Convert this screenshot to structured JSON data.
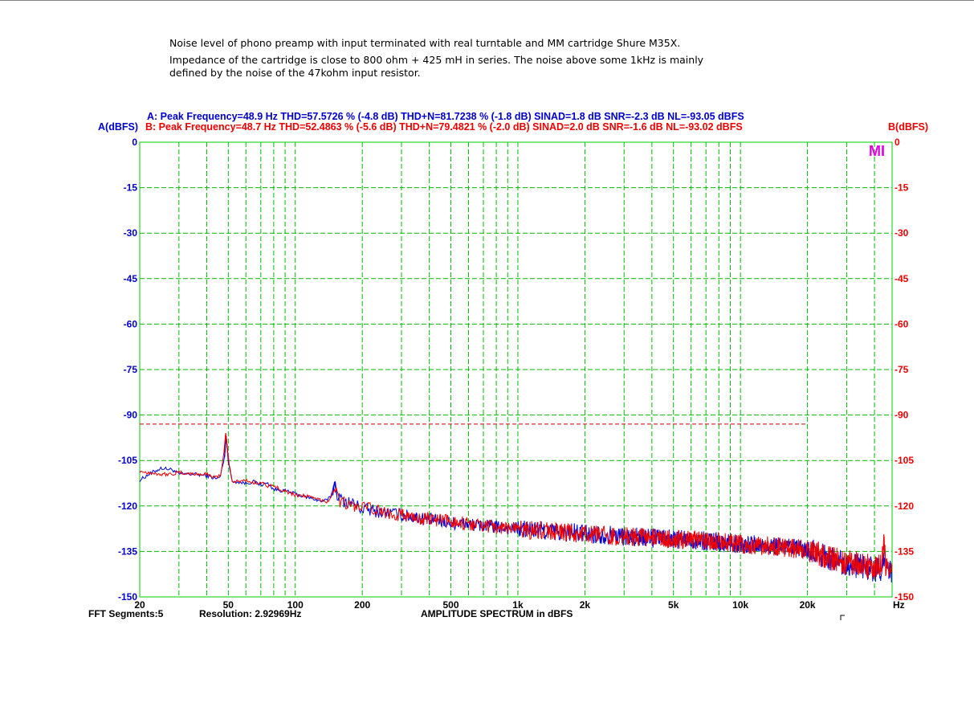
{
  "notes": [
    "Noise level of phono preamp with input terminated with real turntable and MM cartridge Shure M35X.",
    "Impedance of the cartridge is close to 800 ohm + 425 mH in series. The noise above some 1kHz is mainly",
    "defined by the noise of the 47kohm input resistor."
  ],
  "chart_data": {
    "type": "line",
    "xscale": "log",
    "xlim": [
      20,
      48000
    ],
    "ylim": [
      -150,
      0
    ],
    "grid": true,
    "grid_color": "#00cc00",
    "header": {
      "line_a": "A: Peak Frequency=48.9 Hz  THD=57.5726 % (-4.8 dB)  THD+N=81.7238 % (-1.8 dB)  SINAD=1.8 dB  SNR=-2.3 dB  NL=-93.05 dBFS",
      "line_b": "B: Peak Frequency=48.7 Hz  THD=52.4863 % (-5.6 dB)  THD+N=79.4821 % (-2.0 dB)  SINAD=2.0 dB  SNR=-1.6 dB  NL=-93.02 dBFS",
      "ylabel_left": "A(dBFS)",
      "ylabel_right": "B(dBFS)"
    },
    "y_ticks": [
      "0",
      "-15",
      "-30",
      "-45",
      "-60",
      "-75",
      "-90",
      "-105",
      "-120",
      "-135",
      "-150"
    ],
    "x_ticks": [
      {
        "f": 20,
        "label": "20"
      },
      {
        "f": 50,
        "label": "50"
      },
      {
        "f": 100,
        "label": "100"
      },
      {
        "f": 200,
        "label": "200"
      },
      {
        "f": 500,
        "label": "500"
      },
      {
        "f": 1000,
        "label": "1k"
      },
      {
        "f": 2000,
        "label": "2k"
      },
      {
        "f": 5000,
        "label": "5k"
      },
      {
        "f": 10000,
        "label": "10k"
      },
      {
        "f": 20000,
        "label": "20k"
      }
    ],
    "x_unit": "Hz",
    "x_gridlines": [
      20,
      30,
      40,
      50,
      60,
      70,
      80,
      90,
      100,
      200,
      300,
      400,
      500,
      600,
      700,
      800,
      900,
      1000,
      2000,
      3000,
      4000,
      5000,
      6000,
      7000,
      8000,
      9000,
      10000,
      20000,
      30000,
      40000
    ],
    "noise_level_line": {
      "value": -93.0,
      "x_start": 20,
      "x_end": 20000,
      "color": "#cc0000"
    },
    "series": [
      {
        "name": "A",
        "color": "#0000dd",
        "points": [
          [
            20,
            -111.5
          ],
          [
            22,
            -109.5
          ],
          [
            25,
            -107.5
          ],
          [
            28,
            -108.0
          ],
          [
            30,
            -109.5
          ],
          [
            35,
            -109.5
          ],
          [
            40,
            -110.0
          ],
          [
            44,
            -111.0
          ],
          [
            46,
            -110.5
          ],
          [
            48,
            -104.0
          ],
          [
            48.9,
            -97.0
          ],
          [
            50,
            -105.0
          ],
          [
            52,
            -112.0
          ],
          [
            55,
            -112.0
          ],
          [
            60,
            -112.5
          ],
          [
            65,
            -112.0
          ],
          [
            70,
            -113.0
          ],
          [
            75,
            -112.5
          ],
          [
            80,
            -114.5
          ],
          [
            90,
            -115.0
          ],
          [
            100,
            -116.0
          ],
          [
            110,
            -117.0
          ],
          [
            120,
            -117.5
          ],
          [
            130,
            -118.5
          ],
          [
            140,
            -118.0
          ],
          [
            145,
            -116.5
          ],
          [
            150,
            -112.0
          ],
          [
            155,
            -116.5
          ],
          [
            160,
            -118.0
          ],
          [
            180,
            -119.0
          ],
          [
            200,
            -121.0
          ],
          [
            250,
            -122.0
          ],
          [
            300,
            -123.0
          ],
          [
            400,
            -124.5
          ],
          [
            500,
            -125.5
          ],
          [
            700,
            -126.5
          ],
          [
            1000,
            -127.5
          ],
          [
            1500,
            -128.5
          ],
          [
            2000,
            -129.0
          ],
          [
            3000,
            -130.0
          ],
          [
            5000,
            -131.0
          ],
          [
            7000,
            -131.5
          ],
          [
            10000,
            -132.5
          ],
          [
            15000,
            -133.5
          ],
          [
            20000,
            -134.5
          ],
          [
            25000,
            -137.0
          ],
          [
            30000,
            -139.0
          ],
          [
            35000,
            -140.0
          ],
          [
            40000,
            -141.0
          ],
          [
            43000,
            -140.5
          ],
          [
            44000,
            -138.0
          ],
          [
            45000,
            -141.5
          ],
          [
            48000,
            -142.0
          ]
        ]
      },
      {
        "name": "B",
        "color": "#ee0000",
        "points": [
          [
            20,
            -108.5
          ],
          [
            22,
            -109.0
          ],
          [
            25,
            -109.5
          ],
          [
            28,
            -109.5
          ],
          [
            30,
            -109.0
          ],
          [
            35,
            -109.5
          ],
          [
            40,
            -109.5
          ],
          [
            44,
            -110.5
          ],
          [
            46,
            -110.0
          ],
          [
            48,
            -102.0
          ],
          [
            48.7,
            -96.0
          ],
          [
            50,
            -104.0
          ],
          [
            52,
            -112.0
          ],
          [
            55,
            -112.0
          ],
          [
            60,
            -111.5
          ],
          [
            65,
            -112.5
          ],
          [
            70,
            -112.0
          ],
          [
            75,
            -113.5
          ],
          [
            80,
            -113.5
          ],
          [
            90,
            -115.0
          ],
          [
            100,
            -116.5
          ],
          [
            110,
            -116.5
          ],
          [
            120,
            -117.5
          ],
          [
            130,
            -118.0
          ],
          [
            140,
            -118.5
          ],
          [
            145,
            -117.0
          ],
          [
            150,
            -114.0
          ],
          [
            155,
            -117.0
          ],
          [
            160,
            -118.5
          ],
          [
            180,
            -120.0
          ],
          [
            200,
            -120.5
          ],
          [
            250,
            -122.0
          ],
          [
            300,
            -123.0
          ],
          [
            400,
            -124.5
          ],
          [
            500,
            -125.0
          ],
          [
            700,
            -126.5
          ],
          [
            1000,
            -127.5
          ],
          [
            1500,
            -128.5
          ],
          [
            2000,
            -129.5
          ],
          [
            3000,
            -130.0
          ],
          [
            5000,
            -131.0
          ],
          [
            7000,
            -131.5
          ],
          [
            10000,
            -132.5
          ],
          [
            15000,
            -133.5
          ],
          [
            20000,
            -134.5
          ],
          [
            25000,
            -137.0
          ],
          [
            30000,
            -138.5
          ],
          [
            35000,
            -139.5
          ],
          [
            40000,
            -140.5
          ],
          [
            43000,
            -139.0
          ],
          [
            44000,
            -132.5
          ],
          [
            45000,
            -140.5
          ],
          [
            48000,
            -141.5
          ]
        ]
      }
    ],
    "footer": {
      "segments": "FFT Segments:5",
      "resolution": "Resolution: 2.92969Hz",
      "caption": "AMPLITUDE SPECTRUM in dBFS"
    },
    "logo": "MI"
  }
}
